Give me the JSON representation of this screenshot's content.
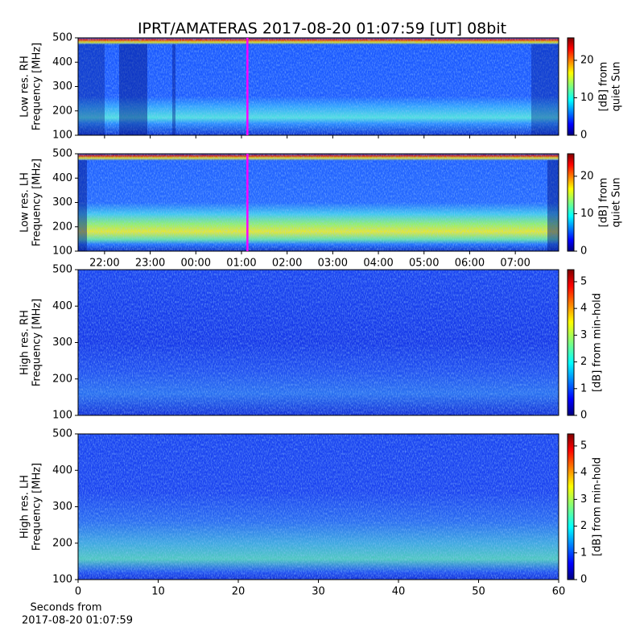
{
  "title": "IPRT/AMATERAS 2017-08-20 01:07:59 [UT]   08bit",
  "chart_data": [
    {
      "type": "heatmap",
      "ylabel": [
        "Low res. RH",
        "Frequency [MHz]"
      ],
      "ylim": [
        100,
        500
      ],
      "yticks": [
        100,
        200,
        300,
        400,
        500
      ],
      "colorbar_label": [
        "[dB] from",
        "quiet Sun"
      ],
      "clim": [
        0,
        26
      ],
      "cticks": [
        0,
        10,
        20
      ],
      "colormap": "jet",
      "cursor_x": 25.13,
      "cursor_color": "#ff00ff"
    },
    {
      "type": "heatmap",
      "ylabel": [
        "Low res. LH",
        "Frequency [MHz]"
      ],
      "ylim": [
        100,
        500
      ],
      "yticks": [
        100,
        200,
        300,
        400,
        500
      ],
      "xlim": [
        21.42,
        31.95
      ],
      "xticks": [
        {
          "value": 22,
          "label": "22:00"
        },
        {
          "value": 23,
          "label": "23:00"
        },
        {
          "value": 24,
          "label": "00:00"
        },
        {
          "value": 25,
          "label": "01:00"
        },
        {
          "value": 26,
          "label": "02:00"
        },
        {
          "value": 27,
          "label": "03:00"
        },
        {
          "value": 28,
          "label": "04:00"
        },
        {
          "value": 29,
          "label": "05:00"
        },
        {
          "value": 30,
          "label": "06:00"
        },
        {
          "value": 31,
          "label": "07:00"
        }
      ],
      "colorbar_label": [
        "[dB] from",
        "quiet Sun"
      ],
      "clim": [
        0,
        26
      ],
      "cticks": [
        0,
        10,
        20
      ],
      "colormap": "jet",
      "cursor_x": 25.13,
      "cursor_color": "#ff00ff"
    },
    {
      "type": "heatmap",
      "ylabel": [
        "High res. RH",
        "Frequency [MHz]"
      ],
      "ylim": [
        100,
        500
      ],
      "yticks": [
        100,
        200,
        300,
        400,
        500
      ],
      "colorbar_label": [
        "[dB] from min-hold"
      ],
      "clim": [
        0,
        5.45
      ],
      "cticks": [
        0,
        1,
        2,
        3,
        4,
        5
      ],
      "colormap": "jet"
    },
    {
      "type": "heatmap",
      "ylabel": [
        "High res. LH",
        "Frequency [MHz]"
      ],
      "ylim": [
        100,
        500
      ],
      "yticks": [
        100,
        200,
        300,
        400,
        500
      ],
      "xlim": [
        0,
        60
      ],
      "xticks": [
        0,
        10,
        20,
        30,
        40,
        50,
        60
      ],
      "xlabel": [
        "Seconds from",
        "2017-08-20 01:07:59"
      ],
      "colorbar_label": [
        "[dB] from min-hold"
      ],
      "clim": [
        0,
        5.45
      ],
      "cticks": [
        0,
        1,
        2,
        3,
        4,
        5
      ],
      "colormap": "jet"
    }
  ]
}
